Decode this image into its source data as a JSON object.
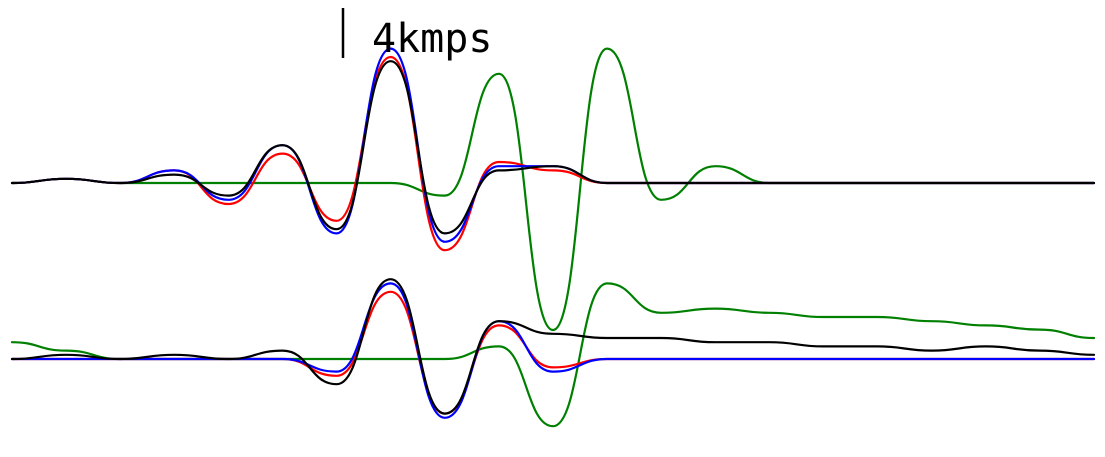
{
  "chart_data": {
    "type": "line",
    "title": "",
    "xlabel": "",
    "ylabel": "",
    "grid": false,
    "legend": "none",
    "scale_bar": {
      "label": "4kmps",
      "value": 4
    },
    "colors": {
      "red": "#ff0000",
      "blue": "#0000ff",
      "black": "#000000",
      "green": "#008000"
    },
    "x": [
      0,
      5,
      10,
      15,
      20,
      25,
      30,
      35,
      40,
      45,
      50,
      55,
      60,
      65,
      70,
      75,
      80,
      85,
      90,
      95,
      100
    ],
    "panels": [
      {
        "baseline": 0,
        "series": [
          {
            "color": "red",
            "values": [
              0,
              0.1,
              0,
              0.3,
              -0.5,
              0.7,
              -0.9,
              3.0,
              -1.6,
              0.5,
              0.3,
              0,
              0,
              0,
              0,
              0,
              0,
              0,
              0,
              0,
              0
            ]
          },
          {
            "color": "blue",
            "values": [
              0,
              0.1,
              0,
              0.3,
              -0.4,
              0.9,
              -1.2,
              3.2,
              -1.4,
              0.4,
              0.4,
              0,
              0,
              0,
              0,
              0,
              0,
              0,
              0,
              0,
              0
            ]
          },
          {
            "color": "black",
            "values": [
              0,
              0.1,
              0,
              0.2,
              -0.3,
              0.9,
              -1.1,
              2.9,
              -1.2,
              0.3,
              0.4,
              0,
              0,
              0,
              0,
              0,
              0,
              0,
              0,
              0,
              0
            ]
          },
          {
            "color": "green",
            "values": [
              0,
              0.1,
              0,
              0,
              0,
              0,
              0,
              0,
              -0.3,
              2.6,
              -3.5,
              3.2,
              -0.4,
              0.4,
              0,
              0,
              0,
              0,
              0,
              0,
              0
            ]
          }
        ]
      },
      {
        "baseline": -4,
        "series": [
          {
            "color": "red",
            "values": [
              0,
              0,
              0,
              0,
              0,
              0,
              -0.4,
              1.6,
              -1.3,
              0.8,
              -0.2,
              0,
              0,
              0,
              0,
              0,
              0,
              0,
              0,
              0,
              0
            ]
          },
          {
            "color": "blue",
            "values": [
              0,
              0,
              0,
              0,
              0,
              0,
              -0.3,
              1.8,
              -1.4,
              0.9,
              -0.3,
              0,
              0,
              0,
              0,
              0,
              0,
              0,
              0,
              0,
              0
            ]
          },
          {
            "color": "black",
            "values": [
              0,
              0.1,
              0,
              0.1,
              0,
              0.2,
              -0.6,
              1.9,
              -1.3,
              0.9,
              0.6,
              0.5,
              0.5,
              0.4,
              0.4,
              0.3,
              0.3,
              0.2,
              0.3,
              0.2,
              0.1
            ]
          },
          {
            "color": "green",
            "values": [
              0.4,
              0.2,
              0,
              0,
              0,
              0,
              0,
              0,
              0,
              0.3,
              -1.6,
              1.8,
              1.1,
              1.2,
              1.1,
              1.0,
              1.0,
              0.9,
              0.8,
              0.7,
              0.5
            ]
          }
        ]
      }
    ]
  }
}
